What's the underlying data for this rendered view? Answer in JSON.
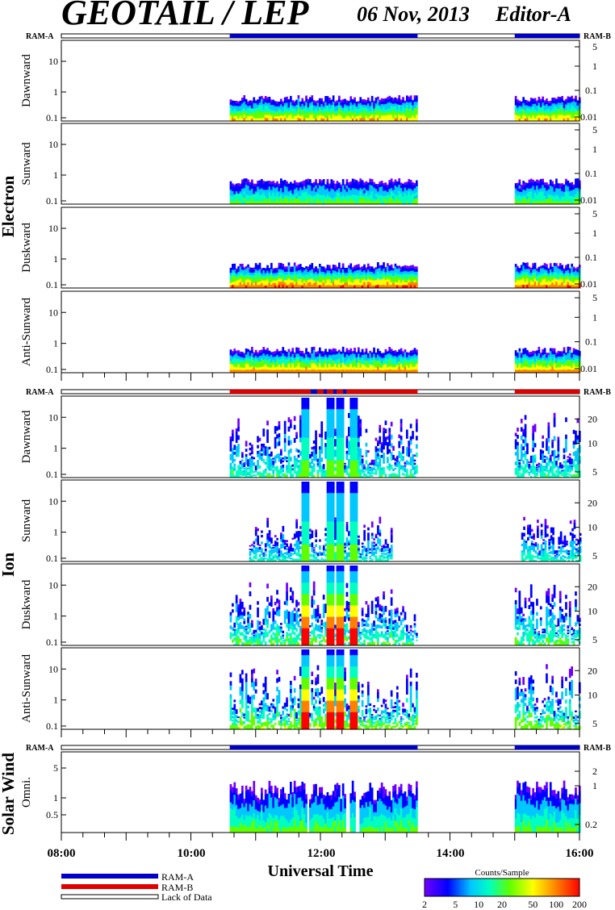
{
  "header": {
    "title": "GEOTAIL / LEP",
    "date": "06 Nov, 2013",
    "editor": "Editor-A"
  },
  "colors": {
    "ram_a": "#0000c8",
    "ram_b": "#e00000",
    "lack": "#ffffff",
    "colorbar_stops": [
      "#7000ff",
      "#0000ff",
      "#00c8ff",
      "#00ffc0",
      "#60ff00",
      "#ffff00",
      "#ff8000",
      "#ff0000"
    ]
  },
  "ram_labels": {
    "a": "RAM-A",
    "b": "RAM-B"
  },
  "species": {
    "electron": "Electron",
    "ion": "Ion",
    "solar_wind": "Solar Wind"
  },
  "x_axis": {
    "label": "Universal Time",
    "range_hours": [
      8,
      16
    ],
    "tick_labels": [
      "08:00",
      "10:00",
      "12:00",
      "14:00",
      "16:00"
    ]
  },
  "legend": {
    "items": [
      {
        "label": "RAM-A",
        "color": "#0000c8"
      },
      {
        "label": "RAM-B",
        "color": "#e00000"
      },
      {
        "label": "Lack of Data",
        "color": "#ffffff"
      }
    ]
  },
  "colorbar": {
    "title": "Counts/Sample",
    "tick_labels": [
      "2",
      "5",
      "10",
      "20",
      "50",
      "100",
      "200"
    ],
    "range": [
      2,
      200
    ],
    "scale": "log"
  },
  "chart_data": [
    {
      "type": "heatmap",
      "species": "Electron",
      "panel_label": "Dawnward",
      "x_unit": "UT hour",
      "y_scale": "log",
      "y_ticks": [
        "0.1",
        "1",
        "10"
      ],
      "right_ticks": [
        "0.01",
        "0.1",
        "1",
        "5"
      ],
      "data_intervals": [
        [
          10.6,
          13.5
        ],
        [
          15.0,
          16.0
        ]
      ],
      "ram_status": [
        {
          "from": 10.6,
          "to": 13.5,
          "mode": "RAM-A"
        },
        {
          "from": 15.0,
          "to": 16.0,
          "mode": "RAM-A"
        }
      ],
      "max_energy": 0.6,
      "peak_level": 0.8
    },
    {
      "type": "heatmap",
      "species": "Electron",
      "panel_label": "Sunward",
      "y_scale": "log",
      "y_ticks": [
        "0.1",
        "1",
        "10"
      ],
      "right_ticks": [
        "0.01",
        "0.1",
        "1",
        "5"
      ],
      "data_intervals": [
        [
          10.6,
          13.5
        ],
        [
          15.0,
          16.0
        ]
      ],
      "max_energy": 0.5,
      "peak_level": 0.55
    },
    {
      "type": "heatmap",
      "species": "Electron",
      "panel_label": "Duskward",
      "y_scale": "log",
      "y_ticks": [
        "0.1",
        "1",
        "10"
      ],
      "right_ticks": [
        "0.01",
        "0.1",
        "1",
        "5"
      ],
      "data_intervals": [
        [
          10.6,
          13.5
        ],
        [
          15.0,
          16.0
        ]
      ],
      "max_energy": 0.6,
      "peak_level": 0.95
    },
    {
      "type": "heatmap",
      "species": "Electron",
      "panel_label": "Anti-Sunward",
      "y_scale": "log",
      "y_ticks": [
        "0.1",
        "1",
        "10"
      ],
      "right_ticks": [
        "0.01",
        "0.1",
        "1",
        "5"
      ],
      "data_intervals": [
        [
          10.6,
          13.5
        ],
        [
          15.0,
          16.0
        ]
      ],
      "max_energy": 0.6,
      "peak_level": 0.9
    },
    {
      "type": "heatmap",
      "species": "Ion",
      "panel_label": "Dawnward",
      "y_scale": "log",
      "y_ticks": [
        "0.1",
        "1",
        "10"
      ],
      "right_ticks": [
        "5",
        "10",
        "20"
      ],
      "data_intervals": [
        [
          10.6,
          13.5
        ],
        [
          15.0,
          16.0
        ]
      ],
      "ram_status": [
        {
          "from": 10.6,
          "to": 13.5,
          "mode": "RAM-B"
        },
        {
          "from": 15.0,
          "to": 16.0,
          "mode": "RAM-B"
        }
      ],
      "bursts": [
        11.75,
        12.15,
        12.3,
        12.5
      ],
      "max_energy": 30,
      "peak_level": 0.45
    },
    {
      "type": "heatmap",
      "species": "Ion",
      "panel_label": "Sunward",
      "y_scale": "log",
      "y_ticks": [
        "0.1",
        "1",
        "10"
      ],
      "right_ticks": [
        "5",
        "10",
        "20"
      ],
      "data_intervals": [
        [
          10.9,
          13.1
        ],
        [
          15.1,
          16.0
        ]
      ],
      "bursts": [
        11.75,
        12.15,
        12.3,
        12.5
      ],
      "max_energy": 30,
      "peak_level": 0.4
    },
    {
      "type": "heatmap",
      "species": "Ion",
      "panel_label": "Duskward",
      "y_scale": "log",
      "y_ticks": [
        "0.1",
        "1",
        "10"
      ],
      "right_ticks": [
        "5",
        "10",
        "20"
      ],
      "data_intervals": [
        [
          10.6,
          13.5
        ],
        [
          15.0,
          16.0
        ]
      ],
      "bursts": [
        11.75,
        12.15,
        12.3,
        12.5
      ],
      "max_energy": 30,
      "peak_level": 0.5
    },
    {
      "type": "heatmap",
      "species": "Ion",
      "panel_label": "Anti-Sunward",
      "y_scale": "log",
      "y_ticks": [
        "0.1",
        "1",
        "10"
      ],
      "right_ticks": [
        "5",
        "10",
        "20"
      ],
      "data_intervals": [
        [
          10.6,
          13.5
        ],
        [
          15.0,
          16.0
        ]
      ],
      "bursts": [
        11.75,
        12.15,
        12.3,
        12.5
      ],
      "max_energy": 30,
      "peak_level": 0.6
    },
    {
      "type": "heatmap",
      "species": "Solar Wind",
      "panel_label": "Omni.",
      "y_scale": "log",
      "y_ticks": [
        "0.5",
        "1",
        "5"
      ],
      "right_ticks": [
        "0.2",
        "1",
        "2"
      ],
      "data_intervals": [
        [
          10.6,
          13.5
        ],
        [
          15.0,
          16.0
        ]
      ],
      "ram_status": [
        {
          "from": 10.6,
          "to": 13.5,
          "mode": "RAM-A"
        },
        {
          "from": 15.0,
          "to": 16.0,
          "mode": "RAM-A"
        }
      ],
      "gaps": [
        11.8,
        12.4,
        12.55
      ],
      "max_energy": 2,
      "peak_level": 0.55
    }
  ]
}
